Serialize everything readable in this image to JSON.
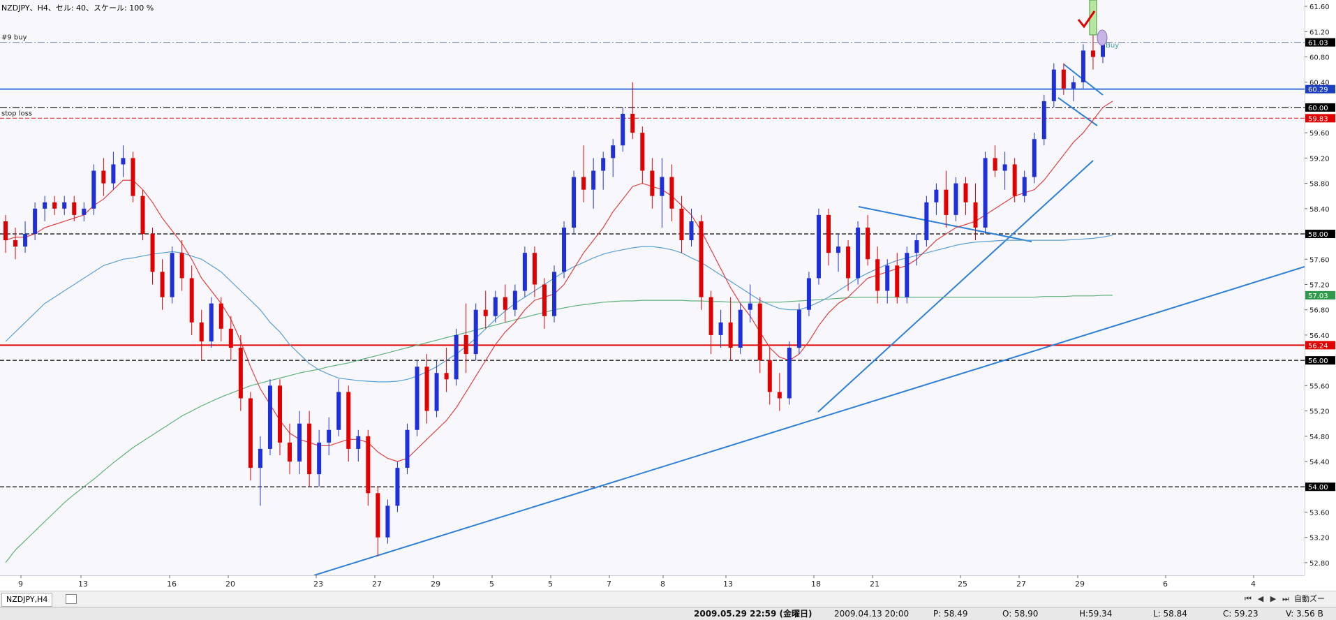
{
  "header": {
    "title": "NZDJPY、H4、セル: 40、スケール: 100 %"
  },
  "chart_data": {
    "type": "candlestick",
    "symbol": "NZDJPY",
    "timeframe": "H4",
    "ylim": [
      52.6,
      61.7
    ],
    "y_ticks": [
      "61.60",
      "61.20",
      "60.80",
      "60.40",
      "60.00",
      "59.60",
      "59.20",
      "58.80",
      "58.40",
      "58.00",
      "57.60",
      "57.20",
      "56.80",
      "56.40",
      "56.00",
      "55.60",
      "55.20",
      "54.80",
      "54.40",
      "54.00",
      "53.60",
      "53.20",
      "52.80"
    ],
    "x_ticks": [
      {
        "label": "9",
        "x": 30
      },
      {
        "label": "13",
        "x": 116
      },
      {
        "label": "16",
        "x": 243
      },
      {
        "label": "20",
        "x": 327
      },
      {
        "label": "23",
        "x": 453
      },
      {
        "label": "27",
        "x": 537
      },
      {
        "label": "29",
        "x": 621
      },
      {
        "label": "5",
        "x": 705
      },
      {
        "label": "5",
        "x": 789
      },
      {
        "label": "7",
        "x": 873
      },
      {
        "label": "8",
        "x": 950
      },
      {
        "label": "13",
        "x": 1040
      },
      {
        "label": "18",
        "x": 1166
      },
      {
        "label": "21",
        "x": 1250
      },
      {
        "label": "25",
        "x": 1376
      },
      {
        "label": "27",
        "x": 1460
      },
      {
        "label": "29",
        "x": 1544
      },
      {
        "label": "6",
        "x": 1670
      },
      {
        "label": "4",
        "x": 1796
      }
    ],
    "levels": [
      {
        "label": "#9 buy",
        "price": 61.03,
        "color": "#7a8ca8",
        "style": "dashdot",
        "badge": "61.03",
        "badge_color": "#000000"
      },
      {
        "label": "",
        "price": 60.29,
        "color": "#3b73d9",
        "style": "solid",
        "badge": "60.29",
        "badge_color": "#1c3fbf"
      },
      {
        "label": "stop loss",
        "price": 59.83,
        "color": "#e03030",
        "style": "dashed",
        "badge": "59.83",
        "badge_color": "#e00000"
      },
      {
        "label": "",
        "price": 60.0,
        "color": "#000000",
        "style": "dashdot",
        "badge": "60.00",
        "badge_color": "#000000"
      },
      {
        "label": "",
        "price": 58.0,
        "color": "#000000",
        "style": "dashed",
        "badge": "58.00",
        "badge_color": "#000000"
      },
      {
        "label": "",
        "price": 57.03,
        "color": "#2e9a4a",
        "style": "none",
        "badge": "57.03",
        "badge_color": "#2e9a4a"
      },
      {
        "label": "",
        "price": 56.24,
        "color": "#e00000",
        "style": "solid",
        "badge": "56.24",
        "badge_color": "#e00000"
      },
      {
        "label": "",
        "price": 56.0,
        "color": "#000000",
        "style": "dashed",
        "badge": "56.00",
        "badge_color": "#000000"
      },
      {
        "label": "",
        "price": 54.0,
        "color": "#000000",
        "style": "dashed",
        "badge": "54.00",
        "badge_color": "#000000"
      }
    ],
    "trade_marker": {
      "label": "Buy",
      "color": "#3aa0a0"
    },
    "candles": [
      [
        58.2,
        58.3,
        57.7,
        57.9
      ],
      [
        57.9,
        58.1,
        57.6,
        57.8
      ],
      [
        57.8,
        58.2,
        57.7,
        58.0
      ],
      [
        58.0,
        58.5,
        57.9,
        58.4
      ],
      [
        58.4,
        58.6,
        58.2,
        58.5
      ],
      [
        58.5,
        58.6,
        58.3,
        58.4
      ],
      [
        58.4,
        58.6,
        58.3,
        58.5
      ],
      [
        58.5,
        58.6,
        58.2,
        58.3
      ],
      [
        58.3,
        58.5,
        58.2,
        58.4
      ],
      [
        58.4,
        59.1,
        58.3,
        59.0
      ],
      [
        59.0,
        59.2,
        58.6,
        58.8
      ],
      [
        58.8,
        59.3,
        58.7,
        59.1
      ],
      [
        59.1,
        59.4,
        58.9,
        59.2
      ],
      [
        59.2,
        59.3,
        58.5,
        58.6
      ],
      [
        58.6,
        58.7,
        57.9,
        58.0
      ],
      [
        58.0,
        58.1,
        57.2,
        57.4
      ],
      [
        57.4,
        57.6,
        56.8,
        57.0
      ],
      [
        57.0,
        57.8,
        56.9,
        57.7
      ],
      [
        57.7,
        57.9,
        57.1,
        57.3
      ],
      [
        57.3,
        57.5,
        56.4,
        56.6
      ],
      [
        56.6,
        56.8,
        56.0,
        56.3
      ],
      [
        56.3,
        57.0,
        56.2,
        56.9
      ],
      [
        56.9,
        57.0,
        56.3,
        56.5
      ],
      [
        56.5,
        56.7,
        56.0,
        56.2
      ],
      [
        56.2,
        56.4,
        55.2,
        55.4
      ],
      [
        55.4,
        55.5,
        54.1,
        54.3
      ],
      [
        54.3,
        54.8,
        53.7,
        54.6
      ],
      [
        54.6,
        55.7,
        54.5,
        55.6
      ],
      [
        55.6,
        55.7,
        54.5,
        54.7
      ],
      [
        54.7,
        55.0,
        54.2,
        54.4
      ],
      [
        54.4,
        55.2,
        54.2,
        55.0
      ],
      [
        55.0,
        55.2,
        54.0,
        54.2
      ],
      [
        54.2,
        54.9,
        54.0,
        54.7
      ],
      [
        54.7,
        55.1,
        54.5,
        54.9
      ],
      [
        54.9,
        55.7,
        54.8,
        55.5
      ],
      [
        55.5,
        55.6,
        54.4,
        54.6
      ],
      [
        54.6,
        54.9,
        54.4,
        54.8
      ],
      [
        54.8,
        54.9,
        53.7,
        53.9
      ],
      [
        53.9,
        54.0,
        52.9,
        53.2
      ],
      [
        53.2,
        53.8,
        53.1,
        53.7
      ],
      [
        53.7,
        54.4,
        53.6,
        54.3
      ],
      [
        54.3,
        55.0,
        54.2,
        54.9
      ],
      [
        54.9,
        56.0,
        54.8,
        55.9
      ],
      [
        55.9,
        56.1,
        55.0,
        55.2
      ],
      [
        55.2,
        56.0,
        55.1,
        55.8
      ],
      [
        55.8,
        56.2,
        55.5,
        55.7
      ],
      [
        55.7,
        56.5,
        55.6,
        56.4
      ],
      [
        56.4,
        56.9,
        55.8,
        56.1
      ],
      [
        56.1,
        56.9,
        56.0,
        56.8
      ],
      [
        56.8,
        57.1,
        56.5,
        56.7
      ],
      [
        56.7,
        57.1,
        56.6,
        57.0
      ],
      [
        57.0,
        57.2,
        56.6,
        56.8
      ],
      [
        56.8,
        57.2,
        56.7,
        57.1
      ],
      [
        57.1,
        57.8,
        57.0,
        57.7
      ],
      [
        57.7,
        57.8,
        57.0,
        57.2
      ],
      [
        57.2,
        57.3,
        56.5,
        56.7
      ],
      [
        56.7,
        57.5,
        56.6,
        57.4
      ],
      [
        57.4,
        58.2,
        57.3,
        58.1
      ],
      [
        58.1,
        59.0,
        58.0,
        58.9
      ],
      [
        58.9,
        59.4,
        58.5,
        58.7
      ],
      [
        58.7,
        59.2,
        58.4,
        59.0
      ],
      [
        59.0,
        59.3,
        58.7,
        59.2
      ],
      [
        59.2,
        59.5,
        58.9,
        59.4
      ],
      [
        59.4,
        60.0,
        59.3,
        59.9
      ],
      [
        59.9,
        60.4,
        59.5,
        59.6
      ],
      [
        59.6,
        59.7,
        58.8,
        59.0
      ],
      [
        59.0,
        59.2,
        58.4,
        58.6
      ],
      [
        58.6,
        59.2,
        58.1,
        58.9
      ],
      [
        58.9,
        59.1,
        58.2,
        58.4
      ],
      [
        58.4,
        58.6,
        57.7,
        57.9
      ],
      [
        57.9,
        58.4,
        57.8,
        58.2
      ],
      [
        58.2,
        58.3,
        56.8,
        57.0
      ],
      [
        57.0,
        57.1,
        56.1,
        56.4
      ],
      [
        56.4,
        56.8,
        56.2,
        56.6
      ],
      [
        56.6,
        57.0,
        56.0,
        56.2
      ],
      [
        56.2,
        56.9,
        56.1,
        56.8
      ],
      [
        56.8,
        57.2,
        56.6,
        56.9
      ],
      [
        56.9,
        57.0,
        55.8,
        56.0
      ],
      [
        56.0,
        56.2,
        55.3,
        55.5
      ],
      [
        55.5,
        55.8,
        55.2,
        55.4
      ],
      [
        55.4,
        56.3,
        55.3,
        56.2
      ],
      [
        56.2,
        56.9,
        56.1,
        56.8
      ],
      [
        56.8,
        57.4,
        56.7,
        57.3
      ],
      [
        57.3,
        58.4,
        57.2,
        58.3
      ],
      [
        58.3,
        58.4,
        57.5,
        57.7
      ],
      [
        57.7,
        58.0,
        57.4,
        57.8
      ],
      [
        57.8,
        57.9,
        57.1,
        57.3
      ],
      [
        57.3,
        58.2,
        57.2,
        58.1
      ],
      [
        58.1,
        58.3,
        57.5,
        57.6
      ],
      [
        57.6,
        57.8,
        56.9,
        57.1
      ],
      [
        57.1,
        57.6,
        56.9,
        57.5
      ],
      [
        57.5,
        57.7,
        56.9,
        57.0
      ],
      [
        57.0,
        57.8,
        56.9,
        57.7
      ],
      [
        57.7,
        58.0,
        57.5,
        57.9
      ],
      [
        57.9,
        58.6,
        57.8,
        58.5
      ],
      [
        58.5,
        58.8,
        58.3,
        58.7
      ],
      [
        58.7,
        59.0,
        58.1,
        58.3
      ],
      [
        58.3,
        58.9,
        58.2,
        58.8
      ],
      [
        58.8,
        58.9,
        58.3,
        58.5
      ],
      [
        58.5,
        58.8,
        57.9,
        58.1
      ],
      [
        58.1,
        59.3,
        58.0,
        59.2
      ],
      [
        59.2,
        59.4,
        58.9,
        59.0
      ],
      [
        59.0,
        59.3,
        58.7,
        59.1
      ],
      [
        59.1,
        59.2,
        58.5,
        58.6
      ],
      [
        58.6,
        59.0,
        58.5,
        58.9
      ],
      [
        58.9,
        59.6,
        58.8,
        59.5
      ],
      [
        59.5,
        60.2,
        59.4,
        60.1
      ],
      [
        60.1,
        60.7,
        60.0,
        60.6
      ],
      [
        60.6,
        60.7,
        60.2,
        60.3
      ],
      [
        60.3,
        60.5,
        60.1,
        60.4
      ],
      [
        60.4,
        61.0,
        60.3,
        60.9
      ],
      [
        60.9,
        61.5,
        60.6,
        60.8
      ],
      [
        60.8,
        61.1,
        60.7,
        61.0
      ]
    ],
    "ma_red": [
      57.9,
      57.95,
      57.95,
      58.0,
      58.1,
      58.15,
      58.2,
      58.25,
      58.3,
      58.45,
      58.55,
      58.7,
      58.85,
      58.85,
      58.7,
      58.5,
      58.25,
      58.05,
      57.85,
      57.6,
      57.3,
      57.1,
      56.9,
      56.65,
      56.3,
      55.9,
      55.55,
      55.3,
      55.05,
      54.85,
      54.75,
      54.7,
      54.65,
      54.65,
      54.7,
      54.75,
      54.75,
      54.7,
      54.55,
      54.45,
      54.4,
      54.45,
      54.6,
      54.75,
      54.9,
      55.05,
      55.25,
      55.5,
      55.75,
      56.0,
      56.25,
      56.45,
      56.6,
      56.8,
      56.95,
      57.0,
      57.05,
      57.2,
      57.45,
      57.7,
      57.9,
      58.1,
      58.35,
      58.55,
      58.75,
      58.8,
      58.75,
      58.7,
      58.6,
      58.45,
      58.3,
      58.05,
      57.75,
      57.45,
      57.15,
      56.9,
      56.7,
      56.45,
      56.2,
      56.05,
      56.0,
      56.1,
      56.3,
      56.55,
      56.75,
      56.9,
      57.0,
      57.15,
      57.3,
      57.35,
      57.4,
      57.45,
      57.5,
      57.6,
      57.75,
      57.9,
      58.0,
      58.1,
      58.15,
      58.2,
      58.3,
      58.4,
      58.5,
      58.6,
      58.65,
      58.7,
      58.85,
      59.05,
      59.25,
      59.45,
      59.6,
      59.8,
      60.0,
      60.1
    ],
    "ma_blue": [
      56.3,
      56.45,
      56.6,
      56.75,
      56.9,
      57.0,
      57.1,
      57.2,
      57.3,
      57.4,
      57.5,
      57.55,
      57.6,
      57.62,
      57.65,
      57.68,
      57.7,
      57.72,
      57.7,
      57.65,
      57.6,
      57.5,
      57.4,
      57.25,
      57.1,
      56.95,
      56.8,
      56.6,
      56.45,
      56.25,
      56.1,
      55.95,
      55.85,
      55.78,
      55.72,
      55.7,
      55.68,
      55.67,
      55.66,
      55.66,
      55.67,
      55.7,
      55.75,
      55.82,
      55.9,
      56.0,
      56.1,
      56.22,
      56.35,
      56.5,
      56.65,
      56.78,
      56.9,
      57.0,
      57.1,
      57.2,
      57.3,
      57.4,
      57.48,
      57.55,
      57.62,
      57.68,
      57.72,
      57.75,
      57.78,
      57.8,
      57.8,
      57.78,
      57.75,
      57.7,
      57.62,
      57.55,
      57.45,
      57.35,
      57.25,
      57.15,
      57.05,
      56.95,
      56.88,
      56.82,
      56.8,
      56.8,
      56.85,
      56.92,
      57.0,
      57.1,
      57.2,
      57.3,
      57.38,
      57.45,
      57.52,
      57.58,
      57.62,
      57.66,
      57.7,
      57.74,
      57.78,
      57.82,
      57.85,
      57.87,
      57.88,
      57.89,
      57.9,
      57.9,
      57.9,
      57.9,
      57.9,
      57.9,
      57.9,
      57.91,
      57.92,
      57.93,
      57.95,
      57.98
    ],
    "ma_green": [
      52.8,
      53.0,
      53.15,
      53.3,
      53.45,
      53.6,
      53.75,
      53.88,
      54.0,
      54.12,
      54.25,
      54.38,
      54.5,
      54.62,
      54.72,
      54.82,
      54.92,
      55.02,
      55.12,
      55.2,
      55.28,
      55.35,
      55.42,
      55.48,
      55.54,
      55.6,
      55.64,
      55.68,
      55.72,
      55.76,
      55.8,
      55.83,
      55.86,
      55.9,
      55.93,
      55.96,
      56.0,
      56.04,
      56.08,
      56.12,
      56.16,
      56.2,
      56.24,
      56.28,
      56.32,
      56.36,
      56.4,
      56.44,
      56.48,
      56.52,
      56.56,
      56.6,
      56.64,
      56.68,
      56.72,
      56.76,
      56.8,
      56.83,
      56.86,
      56.88,
      56.9,
      56.92,
      56.93,
      56.94,
      56.94,
      56.95,
      56.95,
      56.95,
      56.95,
      56.95,
      56.94,
      56.94,
      56.93,
      56.93,
      56.92,
      56.92,
      56.92,
      56.92,
      56.92,
      56.92,
      56.93,
      56.94,
      56.95,
      56.96,
      56.97,
      56.98,
      56.99,
      57.0,
      57.0,
      57.0,
      57.0,
      57.0,
      57.0,
      57.0,
      57.0,
      57.0,
      57.0,
      57.0,
      57.0,
      57.0,
      57.0,
      57.0,
      57.0,
      57.0,
      57.0,
      57.0,
      57.01,
      57.01,
      57.01,
      57.02,
      57.02,
      57.02,
      57.03,
      57.03
    ]
  },
  "tabs": [
    {
      "label": "NZDJPY,H4"
    }
  ],
  "status": {
    "datetime": "2009.05.29 22:59 (金曜日)",
    "bar_time": "2009.04.13 20:00",
    "p": "P: 58.49",
    "o": "O: 58.90",
    "h": "H:59.34",
    "l": "L: 58.84",
    "c": "C: 59.23",
    "v": "V: 3.56 B"
  },
  "autoscroll": {
    "label": "自動ズー"
  }
}
